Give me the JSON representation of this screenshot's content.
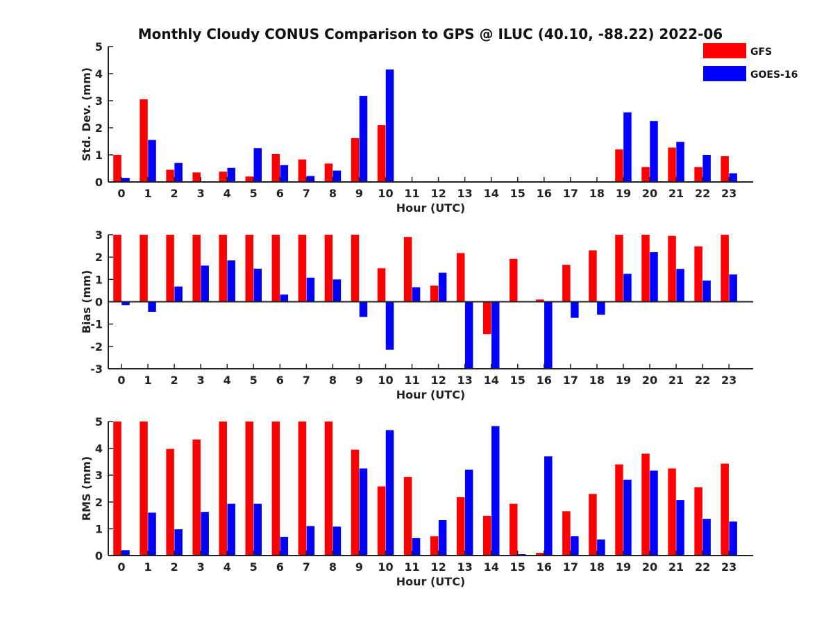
{
  "chart_data": {
    "type": "bar",
    "title": "Monthly Cloudy CONUS Comparison to GPS @ ILUC (40.10, -88.22) 2022-06",
    "categories": [
      "0",
      "1",
      "2",
      "3",
      "4",
      "5",
      "6",
      "7",
      "8",
      "9",
      "10",
      "11",
      "12",
      "13",
      "14",
      "15",
      "16",
      "17",
      "18",
      "19",
      "20",
      "21",
      "22",
      "23"
    ],
    "legend": [
      {
        "name": "GFS",
        "color": "#ff0000"
      },
      {
        "name": "GOES-16",
        "color": "#0000ff"
      }
    ],
    "subplots": [
      {
        "ylabel": "Std. Dev. (mm)",
        "xlabel": "Hour (UTC)",
        "ylim": [
          0,
          5
        ],
        "yticks": [
          0,
          1,
          2,
          3,
          4,
          5
        ],
        "zero_line": false,
        "series": [
          {
            "name": "GFS",
            "values": [
              1.0,
              3.05,
              0.45,
              0.35,
              0.38,
              0.2,
              1.03,
              0.83,
              0.68,
              1.62,
              2.1,
              0,
              0,
              0,
              0,
              0,
              0,
              0,
              0,
              1.2,
              0.55,
              1.27,
              0.55,
              0.95
            ]
          },
          {
            "name": "GOES-16",
            "values": [
              0.15,
              1.55,
              0.7,
              0,
              0.52,
              1.25,
              0.62,
              0.22,
              0.42,
              3.18,
              4.15,
              0,
              0,
              0,
              0,
              0,
              0,
              0,
              0,
              2.57,
              2.25,
              1.48,
              1.0,
              0.32
            ]
          }
        ]
      },
      {
        "ylabel": "Bias (mm)",
        "xlabel": "Hour (UTC)",
        "ylim": [
          -3,
          3
        ],
        "yticks": [
          -3,
          -2,
          -1,
          0,
          1,
          2,
          3
        ],
        "zero_line": true,
        "series": [
          {
            "name": "GFS",
            "values": [
              3.0,
              3.0,
              3.0,
              3.0,
              3.0,
              3.0,
              3.0,
              3.0,
              3.0,
              3.0,
              1.5,
              2.9,
              0.72,
              2.18,
              -1.45,
              1.92,
              0.1,
              1.65,
              2.3,
              3.0,
              3.0,
              2.95,
              2.48,
              3.0
            ]
          },
          {
            "name": "GOES-16",
            "values": [
              -0.15,
              -0.45,
              0.68,
              1.62,
              1.85,
              1.48,
              0.32,
              1.08,
              1.0,
              -0.68,
              -2.15,
              0.65,
              1.3,
              -3.0,
              -3.0,
              0.02,
              -3.0,
              -0.72,
              -0.58,
              1.25,
              2.22,
              1.47,
              0.95,
              1.22
            ]
          }
        ]
      },
      {
        "ylabel": "RMS (mm)",
        "xlabel": "Hour (UTC)",
        "ylim": [
          0,
          5
        ],
        "yticks": [
          0,
          1,
          2,
          3,
          4,
          5
        ],
        "zero_line": false,
        "series": [
          {
            "name": "GFS",
            "values": [
              5.0,
              5.0,
              3.98,
              4.33,
              5.0,
              5.0,
              5.0,
              5.0,
              5.0,
              3.95,
              2.58,
              2.93,
              0.72,
              2.18,
              1.48,
              1.93,
              0.1,
              1.65,
              2.3,
              3.4,
              3.8,
              3.25,
              2.55,
              3.43
            ]
          },
          {
            "name": "GOES-16",
            "values": [
              0.2,
              1.6,
              0.98,
              1.63,
              1.93,
              1.93,
              0.7,
              1.1,
              1.08,
              3.25,
              4.68,
              0.65,
              1.32,
              3.2,
              4.83,
              0.05,
              3.7,
              0.72,
              0.6,
              2.83,
              3.17,
              2.07,
              1.37,
              1.27
            ]
          }
        ]
      }
    ]
  }
}
